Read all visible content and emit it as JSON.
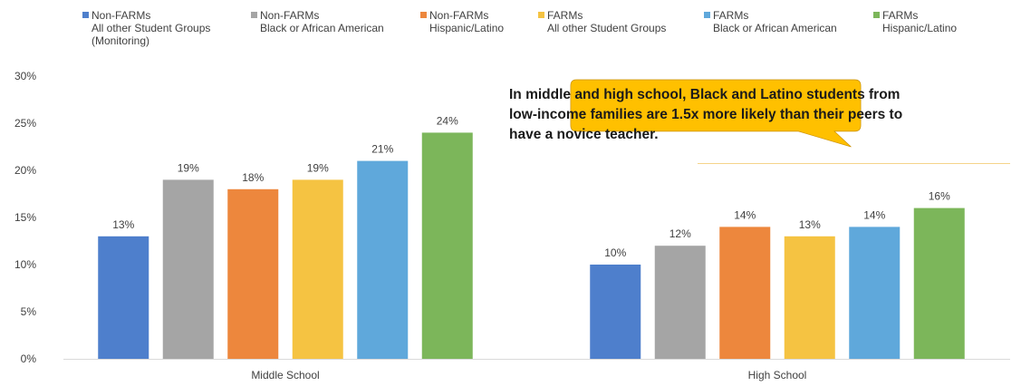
{
  "chart_data": {
    "type": "bar",
    "categories": [
      "Middle School",
      "High School"
    ],
    "series": [
      {
        "name": "Non-FARMs All other Student Groups (Monitoring)",
        "values": [
          13,
          10
        ],
        "color": "#4E7FCC"
      },
      {
        "name": "Non-FARMs Black or African American",
        "values": [
          19,
          12
        ],
        "color": "#A5A5A5"
      },
      {
        "name": "Non-FARMs Hispanic/Latino",
        "values": [
          18,
          14
        ],
        "color": "#ED873D"
      },
      {
        "name": "FARMs All other Student Groups",
        "values": [
          19,
          13
        ],
        "color": "#F5C342"
      },
      {
        "name": "FARMs Black or African American",
        "values": [
          21,
          14
        ],
        "color": "#5FA8DB"
      },
      {
        "name": "FARMs Hispanic/Latino",
        "values": [
          24,
          16
        ],
        "color": "#7CB65A"
      }
    ],
    "legend": [
      {
        "line1": "Non-FARMs",
        "line2": "All other Student Groups",
        "line3": "(Monitoring)"
      },
      {
        "line1": "Non-FARMs",
        "line2": "Black or African American",
        "line3": ""
      },
      {
        "line1": "Non-FARMs",
        "line2": "Hispanic/Latino",
        "line3": ""
      },
      {
        "line1": "FARMs",
        "line2": "All other Student Groups",
        "line3": ""
      },
      {
        "line1": "FARMs",
        "line2": "Black or African American",
        "line3": ""
      },
      {
        "line1": "FARMs",
        "line2": "Hispanic/Latino",
        "line3": ""
      }
    ],
    "y_ticks": [
      "0%",
      "5%",
      "10%",
      "15%",
      "20%",
      "25%",
      "30%"
    ],
    "ylim": [
      0,
      30
    ],
    "value_suffix": "%",
    "legend_position": "top",
    "grid": false
  },
  "callout": {
    "text": "In middle and high school, Black and Latino students from low-income families are 1.5x more likely than their peers to have a novice teacher.",
    "fill": "#FFC000"
  }
}
